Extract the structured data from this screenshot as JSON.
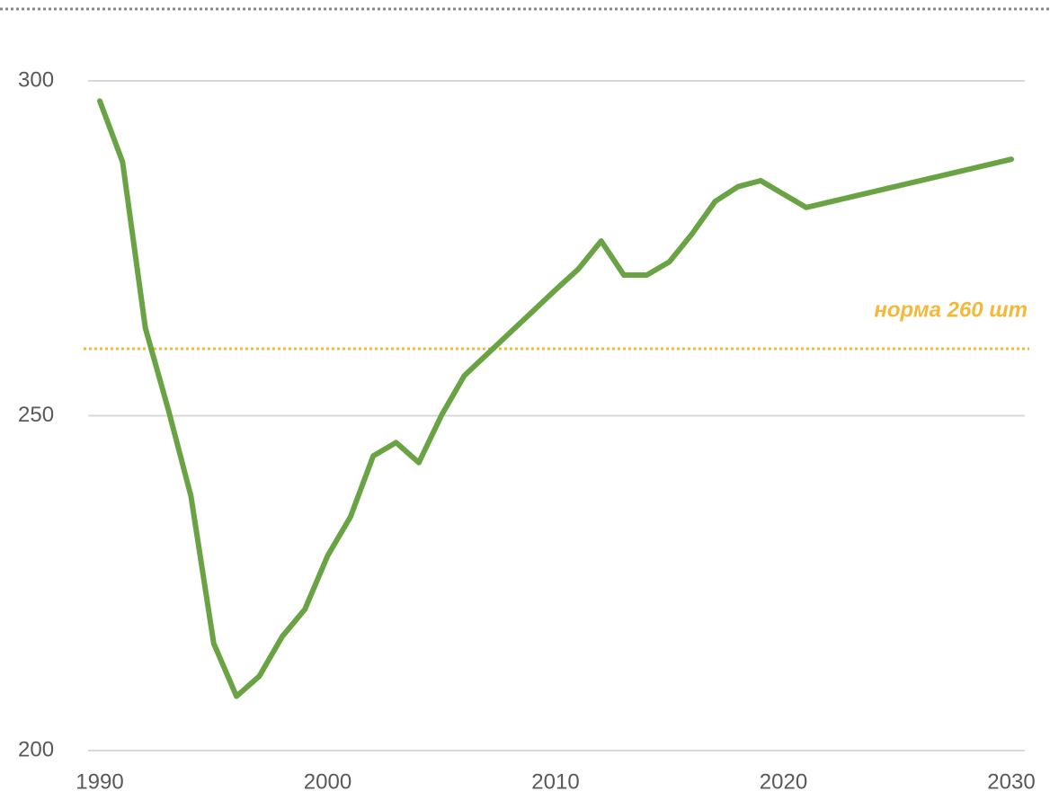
{
  "chart_data": {
    "type": "line",
    "x": [
      1990,
      1991,
      1992,
      1993,
      1994,
      1995,
      1996,
      1997,
      1998,
      1999,
      2000,
      2001,
      2002,
      2003,
      2004,
      2005,
      2006,
      2007,
      2008,
      2009,
      2010,
      2011,
      2012,
      2013,
      2014,
      2015,
      2016,
      2017,
      2018,
      2019,
      2020,
      2021,
      2030
    ],
    "series": [
      {
        "color": "#6aa343",
        "values": [
          297.0,
          287.9,
          263.1,
          251.0,
          238.0,
          216.0,
          208.1,
          211.1,
          217.0,
          221.1,
          229.1,
          234.9,
          244.0,
          246.0,
          243.0,
          250.1,
          256.0,
          259.2,
          262.4,
          265.6,
          268.8,
          271.9,
          276.1,
          271.0,
          271.0,
          273.0,
          277.2,
          282.0,
          284.2,
          285.1,
          283.1,
          281.1,
          288.3
        ]
      }
    ],
    "xlim": [
      1990,
      2030
    ],
    "xticks": [
      1990,
      2000,
      2010,
      2020,
      2030
    ],
    "ylim": [
      200,
      300
    ],
    "yticks": [
      200,
      250,
      300
    ],
    "grid": true,
    "reference_line": {
      "value": 260,
      "label": "норма 260 шт",
      "color": "#f4b93a"
    }
  }
}
